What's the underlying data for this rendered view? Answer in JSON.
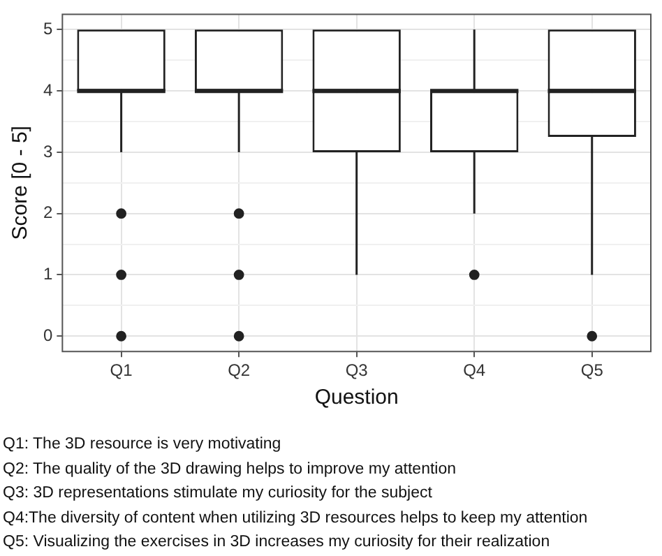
{
  "chart_data": {
    "type": "box",
    "xlabel": "Question",
    "ylabel": "Score [0 - 5]",
    "categories": [
      "Q1",
      "Q2",
      "Q3",
      "Q4",
      "Q5"
    ],
    "boxes": [
      {
        "low": 3,
        "q1": 4,
        "median": 4,
        "q3": 5,
        "high": 5,
        "outliers": [
          2,
          1,
          0
        ]
      },
      {
        "low": 3,
        "q1": 4,
        "median": 4,
        "q3": 5,
        "high": 5,
        "outliers": [
          2,
          1,
          0
        ]
      },
      {
        "low": 1,
        "q1": 3,
        "median": 4,
        "q3": 5,
        "high": 5
      },
      {
        "low": 2,
        "q1": 3,
        "median": 4,
        "q3": 4,
        "high": 5,
        "outliers": [
          1
        ]
      },
      {
        "low": 1,
        "q1": 3.25,
        "median": 4,
        "q3": 5,
        "high": 5,
        "outliers": [
          0
        ]
      }
    ],
    "ylim": [
      -0.25,
      5.25
    ],
    "yticks": [
      0,
      {
        "value": 0.5,
        "label": null
      },
      1,
      {
        "value": 1.5,
        "label": null
      },
      2,
      {
        "value": 2.5,
        "label": null
      },
      3,
      {
        "value": 3.5,
        "label": null
      },
      4,
      {
        "value": 4.5,
        "label": null
      },
      5
    ],
    "grid": true,
    "annotations": [
      "Q1: The 3D resource is very motivating",
      "Q2: The quality of the 3D drawing helps to improve my attention",
      "Q3: 3D representations stimulate my curiosity for the subject",
      "Q4:The diversity of content when utilizing 3D resources helps to keep my attention",
      "Q5: Visualizing the exercises in 3D increases my curiosity for their realization"
    ]
  }
}
